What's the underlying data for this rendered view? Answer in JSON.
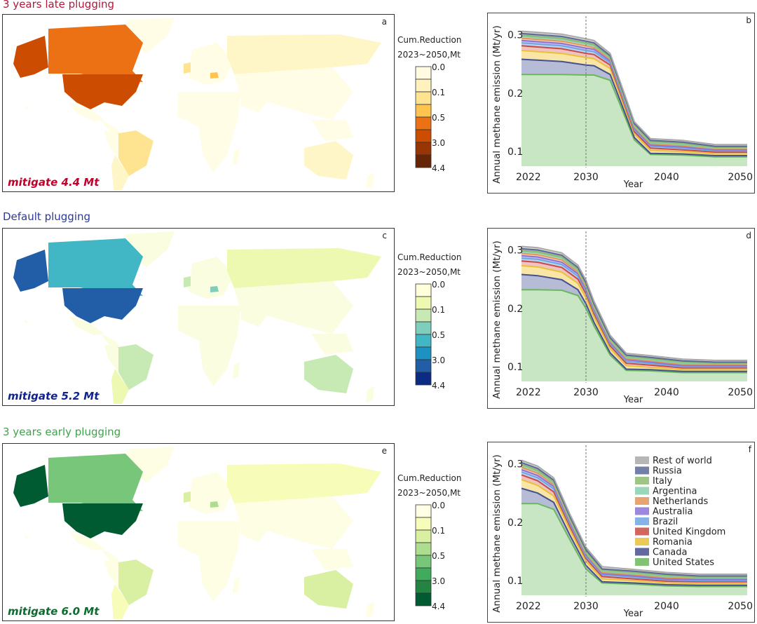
{
  "rows": [
    {
      "title": "3 years late plugging",
      "title_color": "#b5163a",
      "map_letter": "a",
      "mitigate": "mitigate 4.4 Mt",
      "mitigate_color": "#c0002a",
      "legend_title_1": "Cum.Reduction",
      "legend_title_2": "2023~2050,Mt",
      "legend_colors": [
        "#fffbe0",
        "#fff2bd",
        "#fee391",
        "#fec44f",
        "#ec7014",
        "#cc4c02",
        "#993404",
        "#662506"
      ],
      "legend_ticks": [
        "0.0",
        "0.1",
        "0.5",
        "3.0",
        "4.4"
      ],
      "country_colors": {
        "usa": "#cc4c02",
        "alaska": "#cc4c02",
        "canada": "#ec7014",
        "brazil": "#fee391",
        "romania": "#fec44f",
        "uk": "#fee391",
        "russia": "#fff6c8",
        "australia": "#fff6c8",
        "argentina": "#fff6c8",
        "rest": "#fffde6"
      }
    },
    {
      "title": "Default plugging",
      "title_color": "#2b3a9a",
      "map_letter": "c",
      "mitigate": "mitigate 5.2 Mt",
      "mitigate_color": "#10238e",
      "legend_title_1": "Cum.Reduction",
      "legend_title_2": "2023~2050,Mt",
      "legend_colors": [
        "#ffffd9",
        "#edf8b1",
        "#c7e9b4",
        "#7fcdbb",
        "#41b6c4",
        "#1d91c0",
        "#225ea8",
        "#0c2c84"
      ],
      "legend_ticks": [
        "0.0",
        "0.1",
        "0.5",
        "3.0",
        "4.4"
      ],
      "country_colors": {
        "usa": "#225ea8",
        "alaska": "#225ea8",
        "canada": "#41b6c4",
        "brazil": "#c7e9b4",
        "romania": "#7fcdbb",
        "uk": "#c7e9b4",
        "russia": "#edf8b1",
        "australia": "#c7e9b4",
        "argentina": "#edf8b1",
        "rest": "#fbfde0"
      }
    },
    {
      "title": "3 years early plugging",
      "title_color": "#3fa34d",
      "map_letter": "e",
      "mitigate": "mitigate 6.0 Mt",
      "mitigate_color": "#0e6b2f",
      "legend_title_1": "Cum.Reduction",
      "legend_title_2": "2023~2050,Mt",
      "legend_colors": [
        "#ffffe5",
        "#f7fcb9",
        "#d9f0a3",
        "#addd8e",
        "#78c679",
        "#41ab5d",
        "#238443",
        "#005a32"
      ],
      "legend_ticks": [
        "0.0",
        "0.1",
        "0.5",
        "3.0",
        "4.4"
      ],
      "country_colors": {
        "usa": "#005a32",
        "alaska": "#005a32",
        "canada": "#78c679",
        "brazil": "#d9f0a3",
        "romania": "#addd8e",
        "uk": "#d9f0a3",
        "russia": "#f7fcb9",
        "australia": "#d9f0a3",
        "argentina": "#f7fcb9",
        "rest": "#fdfee3"
      }
    }
  ],
  "chart_data": [
    {
      "type": "area",
      "panel": "b",
      "xlabel": "Year",
      "ylabel": "Annual methane emission (Mt/yr)",
      "xlim": [
        2022,
        2050
      ],
      "ylim": [
        0.075,
        0.315
      ],
      "xticks": [
        "2022",
        "2030",
        "2040",
        "2050"
      ],
      "yticks": [
        "0.1",
        "0.2",
        "0.3"
      ],
      "vline": 2030,
      "x": [
        2022,
        2027,
        2030,
        2031,
        2033,
        2036,
        2038,
        2042,
        2046,
        2050
      ],
      "series": [
        {
          "name": "United States",
          "values": [
            0.232,
            0.232,
            0.231,
            0.231,
            0.222,
            0.12,
            0.095,
            0.094,
            0.091,
            0.091
          ]
        },
        {
          "name": "Canada",
          "values": [
            0.026,
            0.022,
            0.017,
            0.016,
            0.01,
            0.004,
            0.002,
            0.002,
            0.002,
            0.002
          ]
        },
        {
          "name": "Romania",
          "values": [
            0.015,
            0.014,
            0.013,
            0.012,
            0.01,
            0.006,
            0.005,
            0.004,
            0.003,
            0.003
          ]
        },
        {
          "name": "United Kingdom",
          "values": [
            0.008,
            0.008,
            0.007,
            0.007,
            0.006,
            0.004,
            0.004,
            0.003,
            0.003,
            0.003
          ]
        },
        {
          "name": "Brazil",
          "values": [
            0.005,
            0.005,
            0.005,
            0.005,
            0.004,
            0.003,
            0.003,
            0.003,
            0.002,
            0.002
          ]
        },
        {
          "name": "Australia",
          "values": [
            0.004,
            0.004,
            0.004,
            0.004,
            0.003,
            0.003,
            0.002,
            0.002,
            0.002,
            0.002
          ]
        },
        {
          "name": "Netherlands",
          "values": [
            0.004,
            0.004,
            0.004,
            0.003,
            0.003,
            0.002,
            0.002,
            0.002,
            0.002,
            0.002
          ]
        },
        {
          "name": "Argentina",
          "values": [
            0.003,
            0.003,
            0.003,
            0.003,
            0.002,
            0.002,
            0.002,
            0.002,
            0.001,
            0.001
          ]
        },
        {
          "name": "Italy",
          "values": [
            0.002,
            0.002,
            0.002,
            0.002,
            0.002,
            0.002,
            0.002,
            0.002,
            0.001,
            0.001
          ]
        },
        {
          "name": "Russia",
          "values": [
            0.003,
            0.003,
            0.003,
            0.003,
            0.002,
            0.002,
            0.002,
            0.002,
            0.002,
            0.002
          ]
        },
        {
          "name": "Rest of world",
          "values": [
            0.004,
            0.004,
            0.004,
            0.004,
            0.004,
            0.003,
            0.003,
            0.003,
            0.003,
            0.003
          ]
        }
      ]
    },
    {
      "type": "area",
      "panel": "d",
      "xlabel": "Year",
      "ylabel": "Annual methane emission (Mt/yr)",
      "xlim": [
        2022,
        2050
      ],
      "ylim": [
        0.075,
        0.315
      ],
      "xticks": [
        "2022",
        "2030",
        "2040",
        "2050"
      ],
      "yticks": [
        "0.1",
        "0.2",
        "0.3"
      ],
      "vline": 2030,
      "x": [
        2022,
        2024,
        2027,
        2029,
        2030,
        2031,
        2033,
        2035,
        2038,
        2042,
        2046,
        2050
      ],
      "series": [
        {
          "name": "United States",
          "values": [
            0.232,
            0.232,
            0.231,
            0.222,
            0.2,
            0.17,
            0.12,
            0.094,
            0.093,
            0.09,
            0.09,
            0.09
          ]
        },
        {
          "name": "Canada",
          "values": [
            0.026,
            0.024,
            0.018,
            0.01,
            0.008,
            0.006,
            0.004,
            0.002,
            0.002,
            0.002,
            0.002,
            0.002
          ]
        },
        {
          "name": "Romania",
          "values": [
            0.015,
            0.015,
            0.013,
            0.011,
            0.01,
            0.009,
            0.007,
            0.006,
            0.004,
            0.003,
            0.003,
            0.003
          ]
        },
        {
          "name": "United Kingdom",
          "values": [
            0.008,
            0.008,
            0.008,
            0.007,
            0.007,
            0.006,
            0.005,
            0.004,
            0.004,
            0.003,
            0.003,
            0.003
          ]
        },
        {
          "name": "Brazil",
          "values": [
            0.005,
            0.005,
            0.005,
            0.005,
            0.004,
            0.004,
            0.003,
            0.003,
            0.003,
            0.002,
            0.002,
            0.002
          ]
        },
        {
          "name": "Australia",
          "values": [
            0.004,
            0.004,
            0.004,
            0.004,
            0.004,
            0.003,
            0.003,
            0.003,
            0.002,
            0.002,
            0.002,
            0.002
          ]
        },
        {
          "name": "Netherlands",
          "values": [
            0.004,
            0.004,
            0.004,
            0.003,
            0.003,
            0.003,
            0.002,
            0.002,
            0.002,
            0.002,
            0.002,
            0.002
          ]
        },
        {
          "name": "Argentina",
          "values": [
            0.003,
            0.003,
            0.003,
            0.003,
            0.003,
            0.002,
            0.002,
            0.002,
            0.002,
            0.002,
            0.001,
            0.001
          ]
        },
        {
          "name": "Italy",
          "values": [
            0.002,
            0.002,
            0.002,
            0.002,
            0.002,
            0.002,
            0.002,
            0.002,
            0.002,
            0.002,
            0.001,
            0.001
          ]
        },
        {
          "name": "Russia",
          "values": [
            0.003,
            0.003,
            0.003,
            0.003,
            0.003,
            0.003,
            0.002,
            0.002,
            0.002,
            0.002,
            0.002,
            0.002
          ]
        },
        {
          "name": "Rest of world",
          "values": [
            0.004,
            0.004,
            0.004,
            0.004,
            0.004,
            0.004,
            0.004,
            0.003,
            0.003,
            0.003,
            0.003,
            0.003
          ]
        }
      ]
    },
    {
      "type": "area",
      "panel": "f",
      "xlabel": "Year",
      "ylabel": "Annual methane emission (Mt/yr)",
      "xlim": [
        2022,
        2050
      ],
      "ylim": [
        0.075,
        0.315
      ],
      "xticks": [
        "2022",
        "2030",
        "2040",
        "2050"
      ],
      "yticks": [
        "0.1",
        "0.2",
        "0.3"
      ],
      "vline": 2030,
      "x": [
        2022,
        2024,
        2026,
        2028,
        2030,
        2032,
        2036,
        2040,
        2044,
        2050
      ],
      "series": [
        {
          "name": "United States",
          "values": [
            0.232,
            0.232,
            0.222,
            0.17,
            0.12,
            0.096,
            0.094,
            0.091,
            0.09,
            0.09
          ]
        },
        {
          "name": "Canada",
          "values": [
            0.026,
            0.018,
            0.012,
            0.008,
            0.006,
            0.002,
            0.002,
            0.002,
            0.002,
            0.002
          ]
        },
        {
          "name": "Romania",
          "values": [
            0.015,
            0.013,
            0.011,
            0.009,
            0.007,
            0.005,
            0.004,
            0.003,
            0.003,
            0.003
          ]
        },
        {
          "name": "United Kingdom",
          "values": [
            0.008,
            0.008,
            0.007,
            0.006,
            0.005,
            0.004,
            0.003,
            0.003,
            0.003,
            0.003
          ]
        },
        {
          "name": "Brazil",
          "values": [
            0.005,
            0.005,
            0.005,
            0.004,
            0.003,
            0.003,
            0.003,
            0.002,
            0.002,
            0.002
          ]
        },
        {
          "name": "Australia",
          "values": [
            0.004,
            0.004,
            0.004,
            0.003,
            0.003,
            0.002,
            0.002,
            0.002,
            0.002,
            0.002
          ]
        },
        {
          "name": "Netherlands",
          "values": [
            0.004,
            0.004,
            0.003,
            0.003,
            0.002,
            0.002,
            0.002,
            0.002,
            0.002,
            0.002
          ]
        },
        {
          "name": "Argentina",
          "values": [
            0.003,
            0.003,
            0.003,
            0.002,
            0.002,
            0.002,
            0.002,
            0.002,
            0.001,
            0.001
          ]
        },
        {
          "name": "Italy",
          "values": [
            0.002,
            0.002,
            0.002,
            0.002,
            0.002,
            0.002,
            0.002,
            0.002,
            0.001,
            0.001
          ]
        },
        {
          "name": "Russia",
          "values": [
            0.003,
            0.003,
            0.003,
            0.003,
            0.003,
            0.002,
            0.002,
            0.002,
            0.002,
            0.002
          ]
        },
        {
          "name": "Rest of world",
          "values": [
            0.004,
            0.004,
            0.004,
            0.004,
            0.004,
            0.004,
            0.003,
            0.003,
            0.003,
            0.003
          ]
        }
      ],
      "legend": [
        "Rest of world",
        "Russia",
        "Italy",
        "Argentina",
        "Netherlands",
        "Australia",
        "Brazil",
        "United Kingdom",
        "Romania",
        "Canada",
        "United States"
      ],
      "legend_placement": "top-right"
    }
  ],
  "series_colors": {
    "United States": {
      "fill": "#c8e6c3",
      "line": "#6bb85c"
    },
    "Canada": {
      "fill": "#b7bcd6",
      "line": "#44508f"
    },
    "Romania": {
      "fill": "#f9e6a6",
      "line": "#e8c13b"
    },
    "United Kingdom": {
      "fill": "#f1c2bf",
      "line": "#c94a44"
    },
    "Brazil": {
      "fill": "#b9d3f0",
      "line": "#6ea7e0"
    },
    "Australia": {
      "fill": "#c9bfee",
      "line": "#8c72d8"
    },
    "Netherlands": {
      "fill": "#f5d0b3",
      "line": "#e39457"
    },
    "Argentina": {
      "fill": "#c9ecdc",
      "line": "#86d0ab"
    },
    "Italy": {
      "fill": "#c4dcab",
      "line": "#8ebb6e"
    },
    "Russia": {
      "fill": "#aeb5d0",
      "line": "#5c6899"
    },
    "Rest of world": {
      "fill": "#d7d7d7",
      "line": "#a9a9a9"
    }
  }
}
